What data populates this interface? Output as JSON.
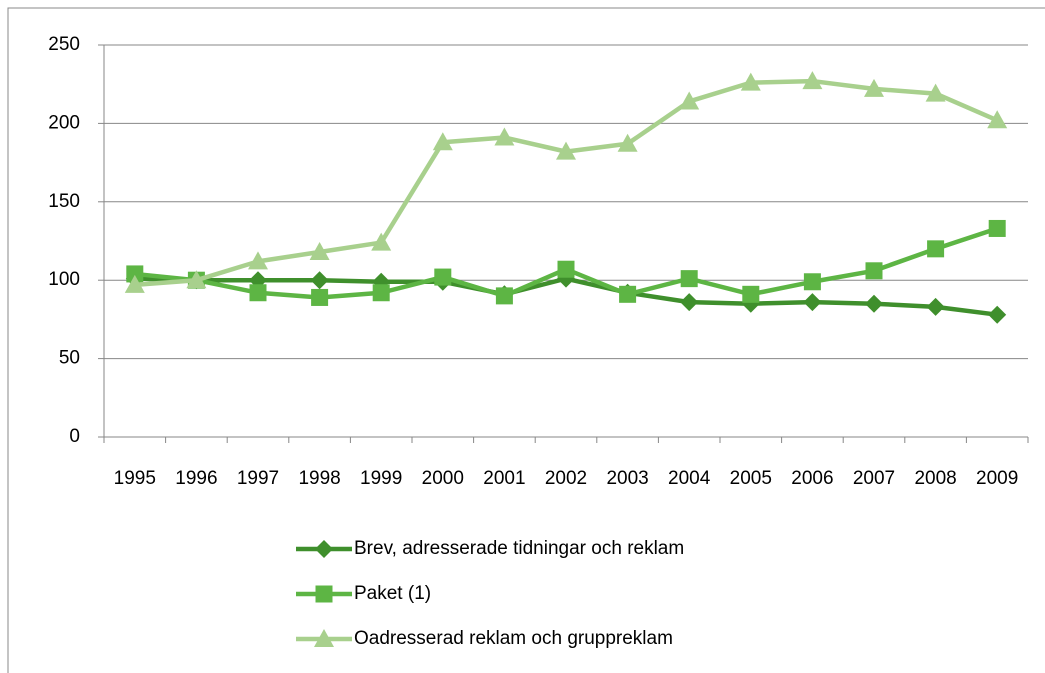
{
  "chart_data": {
    "type": "line",
    "categories": [
      "1995",
      "1996",
      "1997",
      "1998",
      "1999",
      "2000",
      "2001",
      "2002",
      "2003",
      "2004",
      "2005",
      "2006",
      "2007",
      "2008",
      "2009"
    ],
    "series": [
      {
        "name": "Brev, adresserade tidningar och reklam",
        "color": "#3f8f2c",
        "marker": "diamond",
        "values": [
          101,
          100,
          100,
          100,
          99,
          99,
          91,
          101,
          92,
          86,
          85,
          86,
          85,
          83,
          78
        ]
      },
      {
        "name": "Paket (1)",
        "color": "#5db544",
        "marker": "square",
        "values": [
          104,
          100,
          92,
          89,
          92,
          102,
          90,
          107,
          91,
          101,
          91,
          99,
          106,
          120,
          133
        ]
      },
      {
        "name": "Oadresserad reklam och gruppreklam",
        "color": "#a8d08d",
        "marker": "triangle",
        "values": [
          97,
          100,
          112,
          118,
          124,
          188,
          191,
          182,
          187,
          214,
          226,
          227,
          222,
          219,
          202
        ]
      }
    ],
    "ylim": [
      0,
      250
    ],
    "yticks": [
      0,
      50,
      100,
      150,
      200,
      250
    ],
    "grid": true,
    "legend": "bottom"
  }
}
